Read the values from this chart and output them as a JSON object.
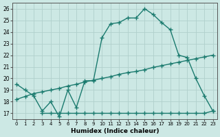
{
  "xlabel": "Humidex (Indice chaleur)",
  "ylabel": "",
  "bg_color": "#cce8e4",
  "grid_color": "#b0d0cc",
  "line_color": "#1a7a6e",
  "xlim": [
    -0.5,
    23.5
  ],
  "ylim": [
    16.5,
    26.5
  ],
  "yticks": [
    17,
    18,
    19,
    20,
    21,
    22,
    23,
    24,
    25,
    26
  ],
  "xticks": [
    0,
    1,
    2,
    3,
    4,
    5,
    6,
    7,
    8,
    9,
    10,
    11,
    12,
    13,
    14,
    15,
    16,
    17,
    18,
    19,
    20,
    21,
    22,
    23
  ],
  "curve1_x": [
    0,
    1,
    2,
    3,
    4,
    5,
    6,
    7,
    8,
    9,
    10,
    11,
    12,
    13,
    14,
    15,
    16,
    17,
    18,
    19,
    20,
    21,
    22,
    23
  ],
  "curve1_y": [
    19.5,
    19.0,
    18.5,
    17.2,
    18.0,
    16.7,
    19.0,
    17.5,
    19.8,
    19.8,
    23.5,
    24.7,
    24.8,
    25.2,
    25.2,
    26.0,
    25.5,
    24.8,
    24.2,
    22.0,
    21.8,
    20.0,
    18.5,
    17.2
  ],
  "curve2_x": [
    0,
    1,
    2,
    3,
    4,
    5,
    6,
    7,
    8,
    9,
    10,
    11,
    12,
    13,
    14,
    15,
    16,
    17,
    18,
    19,
    20,
    21,
    22,
    23
  ],
  "curve2_y": [
    18.2,
    18.45,
    18.7,
    18.85,
    19.0,
    19.15,
    19.35,
    19.5,
    19.7,
    19.85,
    20.0,
    20.15,
    20.35,
    20.5,
    20.6,
    20.75,
    20.95,
    21.1,
    21.25,
    21.4,
    21.55,
    21.7,
    21.85,
    22.0
  ],
  "curve3_x": [
    3,
    4,
    5,
    6,
    7,
    8,
    9,
    10,
    11,
    12,
    13,
    14,
    15,
    16,
    17,
    18,
    19,
    20,
    21,
    22,
    23
  ],
  "curve3_y": [
    17.0,
    17.0,
    17.0,
    17.0,
    17.0,
    17.0,
    17.0,
    17.0,
    17.0,
    17.0,
    17.0,
    17.0,
    17.0,
    17.0,
    17.0,
    17.0,
    17.0,
    17.0,
    17.0,
    17.0,
    17.2
  ],
  "marker": "+",
  "markersize": 4,
  "linewidth": 1.0
}
